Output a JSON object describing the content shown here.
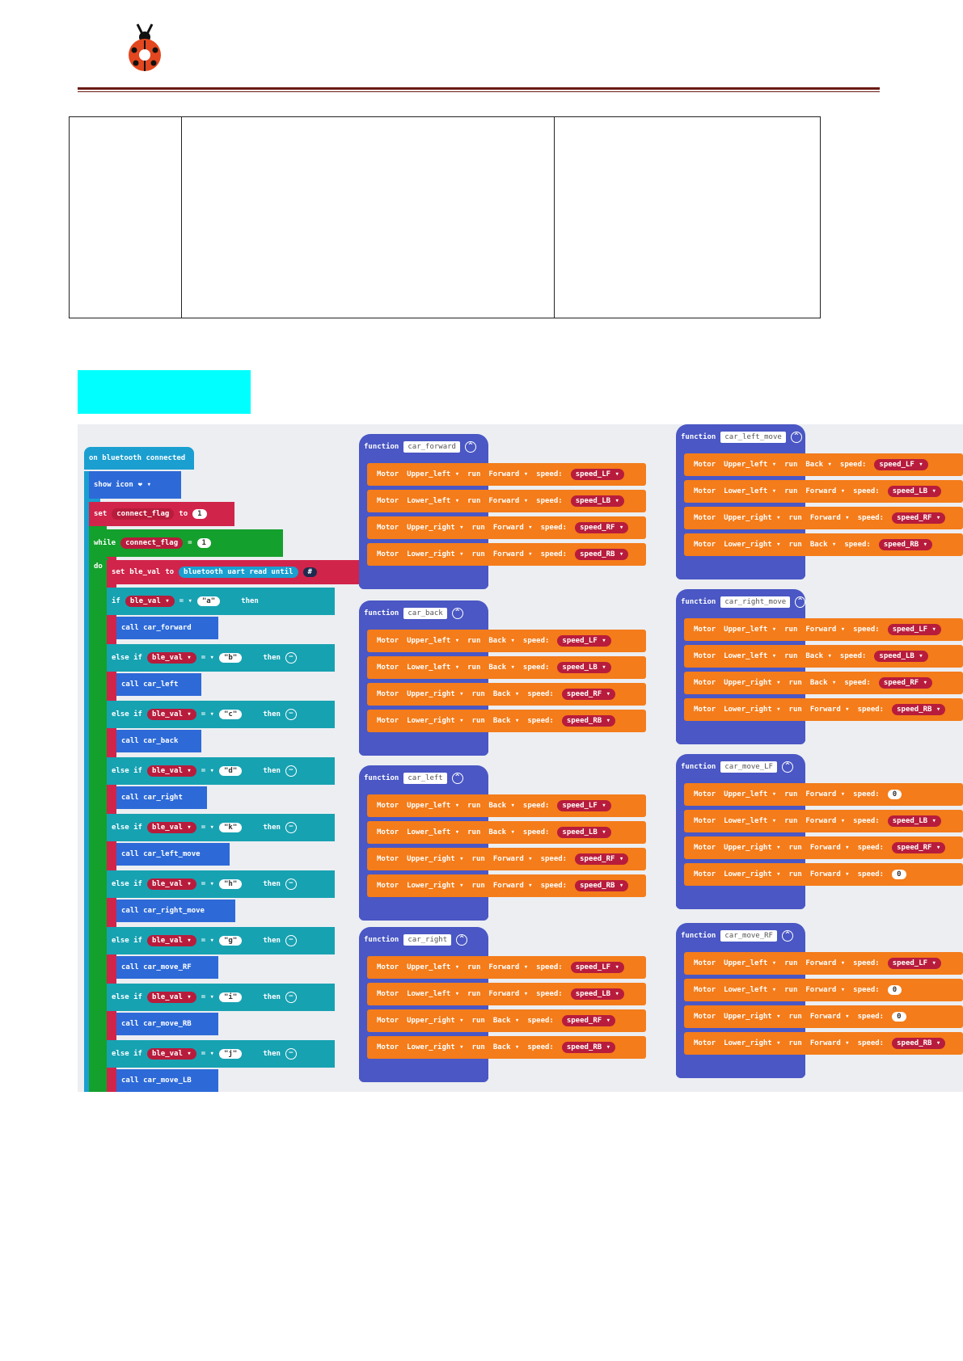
{
  "header": {
    "logo_icon": "ladybug-icon"
  },
  "code_blocks": {
    "event": "on bluetooth connected",
    "show_icon": "show icon",
    "set_flag": {
      "kw": "set",
      "var": "connect_flag",
      "to": "to",
      "val": "1"
    },
    "while": {
      "kw": "while",
      "var": "connect_flag",
      "op": "=",
      "val": "1"
    },
    "do": "do",
    "set_ble": {
      "kw": "set",
      "var": "ble_val",
      "to": "to",
      "fn": "bluetooth uart read until",
      "arg": "#"
    },
    "if_kw": "if",
    "then_kw": "then",
    "else_if_kw": "else if",
    "var": "ble_val",
    "op": "=",
    "branches": [
      {
        "val": "a",
        "call": "call car_forward"
      },
      {
        "val": "b",
        "call": "call car_left"
      },
      {
        "val": "c",
        "call": "call car_back"
      },
      {
        "val": "d",
        "call": "call car_right"
      },
      {
        "val": "k",
        "call": "call car_left_move"
      },
      {
        "val": "h",
        "call": "call car_right_move"
      },
      {
        "val": "g",
        "call": "call car_move_RF"
      },
      {
        "val": "i",
        "call": "call car_move_RB"
      },
      {
        "val": "j",
        "call": "call car_move_LB"
      }
    ]
  },
  "functions": [
    {
      "kw": "function",
      "name": "car_forward",
      "rows": [
        [
          "Motor",
          "Upper_left",
          "run",
          "Forward",
          "speed:",
          "speed_LF"
        ],
        [
          "Motor",
          "Lower_left",
          "run",
          "Forward",
          "speed:",
          "speed_LB"
        ],
        [
          "Motor",
          "Upper_right",
          "run",
          "Forward",
          "speed:",
          "speed_RF"
        ],
        [
          "Motor",
          "Lower_right",
          "run",
          "Forward",
          "speed:",
          "speed_RB"
        ]
      ]
    },
    {
      "kw": "function",
      "name": "car_back",
      "rows": [
        [
          "Motor",
          "Upper_left",
          "run",
          "Back",
          "speed:",
          "speed_LF"
        ],
        [
          "Motor",
          "Lower_left",
          "run",
          "Back",
          "speed:",
          "speed_LB"
        ],
        [
          "Motor",
          "Upper_right",
          "run",
          "Back",
          "speed:",
          "speed_RF"
        ],
        [
          "Motor",
          "Lower_right",
          "run",
          "Back",
          "speed:",
          "speed_RB"
        ]
      ]
    },
    {
      "kw": "function",
      "name": "car_left",
      "rows": [
        [
          "Motor",
          "Upper_left",
          "run",
          "Back",
          "speed:",
          "speed_LF"
        ],
        [
          "Motor",
          "Lower_left",
          "run",
          "Back",
          "speed:",
          "speed_LB"
        ],
        [
          "Motor",
          "Upper_right",
          "run",
          "Forward",
          "speed:",
          "speed_RF"
        ],
        [
          "Motor",
          "Lower_right",
          "run",
          "Forward",
          "speed:",
          "speed_RB"
        ]
      ]
    },
    {
      "kw": "function",
      "name": "car_right",
      "rows": [
        [
          "Motor",
          "Upper_left",
          "run",
          "Forward",
          "speed:",
          "speed_LF"
        ],
        [
          "Motor",
          "Lower_left",
          "run",
          "Forward",
          "speed:",
          "speed_LB"
        ],
        [
          "Motor",
          "Upper_right",
          "run",
          "Back",
          "speed:",
          "speed_RF"
        ],
        [
          "Motor",
          "Lower_right",
          "run",
          "Back",
          "speed:",
          "speed_RB"
        ]
      ]
    },
    {
      "kw": "function",
      "name": "car_left_move",
      "rows": [
        [
          "Motor",
          "Upper_left",
          "run",
          "Back",
          "speed:",
          "speed_LF"
        ],
        [
          "Motor",
          "Lower_left",
          "run",
          "Forward",
          "speed:",
          "speed_LB"
        ],
        [
          "Motor",
          "Upper_right",
          "run",
          "Forward",
          "speed:",
          "speed_RF"
        ],
        [
          "Motor",
          "Lower_right",
          "run",
          "Back",
          "speed:",
          "speed_RB"
        ]
      ]
    },
    {
      "kw": "function",
      "name": "car_right_move",
      "rows": [
        [
          "Motor",
          "Upper_left",
          "run",
          "Forward",
          "speed:",
          "speed_LF"
        ],
        [
          "Motor",
          "Lower_left",
          "run",
          "Back",
          "speed:",
          "speed_LB"
        ],
        [
          "Motor",
          "Upper_right",
          "run",
          "Back",
          "speed:",
          "speed_RF"
        ],
        [
          "Motor",
          "Lower_right",
          "run",
          "Forward",
          "speed:",
          "speed_RB"
        ]
      ]
    },
    {
      "kw": "function",
      "name": "car_move_LF",
      "rows": [
        [
          "Motor",
          "Upper_left",
          "run",
          "Forward",
          "speed:",
          "0"
        ],
        [
          "Motor",
          "Lower_left",
          "run",
          "Forward",
          "speed:",
          "speed_LB"
        ],
        [
          "Motor",
          "Upper_right",
          "run",
          "Forward",
          "speed:",
          "speed_RF"
        ],
        [
          "Motor",
          "Lower_right",
          "run",
          "Forward",
          "speed:",
          "0"
        ]
      ]
    },
    {
      "kw": "function",
      "name": "car_move_RF",
      "rows": [
        [
          "Motor",
          "Upper_left",
          "run",
          "Forward",
          "speed:",
          "speed_LF"
        ],
        [
          "Motor",
          "Lower_left",
          "run",
          "Forward",
          "speed:",
          "0"
        ],
        [
          "Motor",
          "Upper_right",
          "run",
          "Forward",
          "speed:",
          "0"
        ],
        [
          "Motor",
          "Lower_right",
          "run",
          "Forward",
          "speed:",
          "speed_RB"
        ]
      ]
    }
  ],
  "colors": {
    "logo_red": "#e2471f",
    "rule": "#6b1a14",
    "highlight": "#00ffff",
    "motor_orange": "#f47c1a",
    "function_purple": "#4a57c4"
  }
}
